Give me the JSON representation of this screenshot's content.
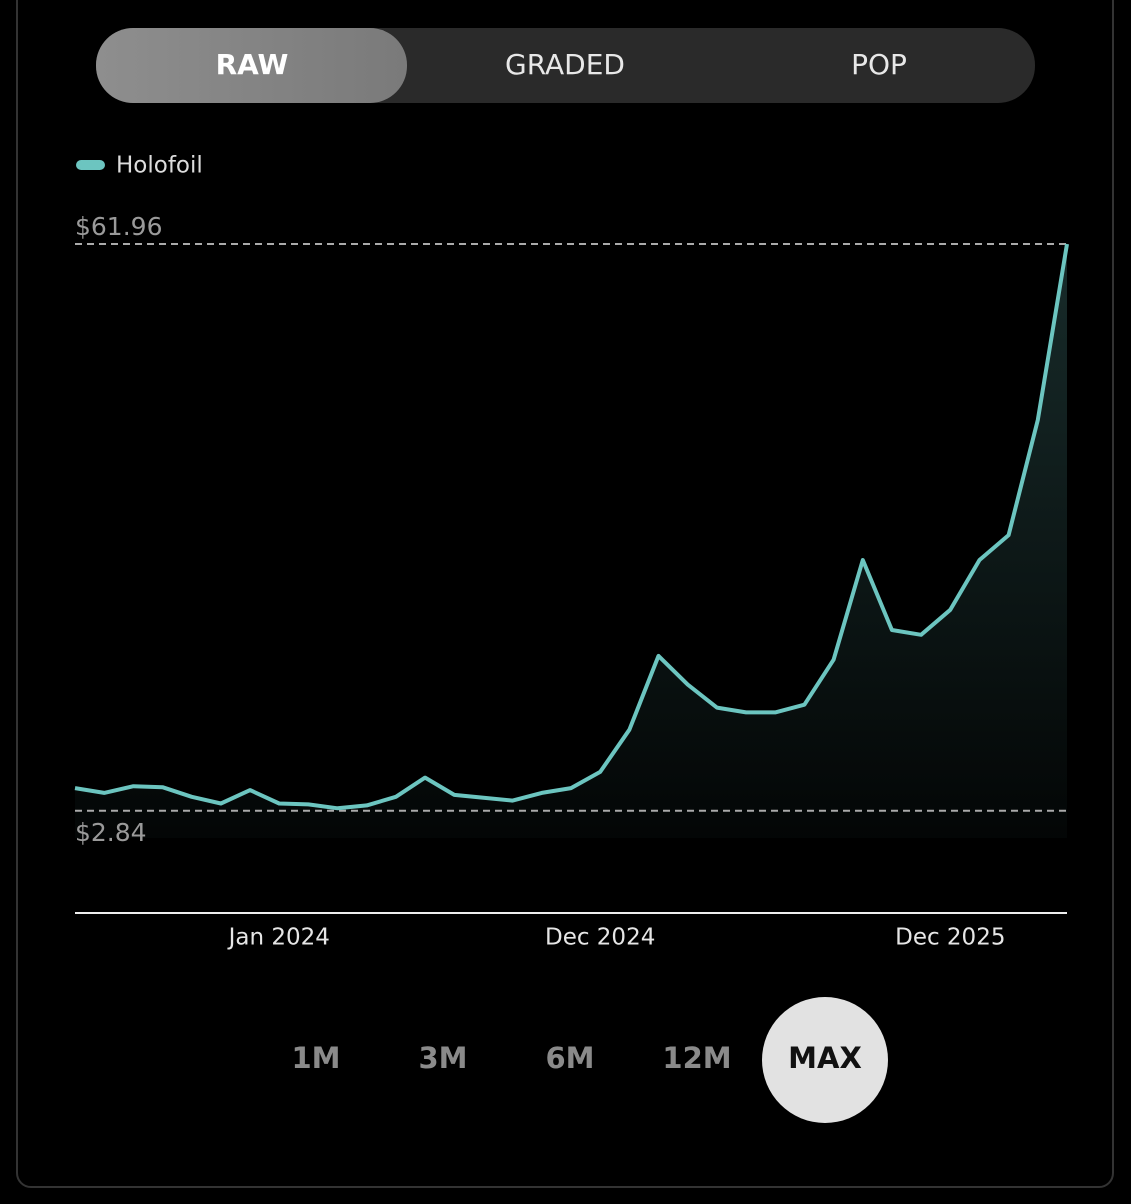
{
  "tabs": [
    "RAW",
    "GRADED",
    "POP"
  ],
  "ranges": [
    "1M",
    "3M",
    "6M",
    "12M",
    "MAX"
  ],
  "chart_data": {
    "type": "line",
    "x": [
      "2023-06",
      "2023-07",
      "2023-08",
      "2023-09",
      "2023-10",
      "2023-11",
      "2023-12",
      "2024-01",
      "2024-02",
      "2024-03",
      "2024-04",
      "2024-05",
      "2024-06",
      "2024-07",
      "2024-08",
      "2024-09",
      "2024-10",
      "2024-11",
      "2024-12",
      "2025-01",
      "2025-02",
      "2025-03",
      "2025-04",
      "2025-05",
      "2025-06",
      "2025-07",
      "2025-08",
      "2025-09",
      "2025-10",
      "2025-11",
      "2025-12",
      "2026-01",
      "2026-02",
      "2026-03",
      "2026-04"
    ],
    "series": [
      {
        "name": "Holofoil",
        "color": "#6cc5c0",
        "values": [
          5.2,
          4.7,
          5.4,
          5.3,
          4.3,
          3.6,
          5.0,
          3.6,
          3.5,
          3.1,
          3.4,
          4.3,
          6.3,
          4.5,
          4.2,
          3.9,
          4.7,
          5.2,
          6.9,
          11.3,
          19.0,
          16.0,
          13.6,
          13.1,
          13.1,
          13.9,
          18.6,
          29.0,
          21.7,
          21.2,
          23.8,
          29.0,
          31.6,
          43.6,
          61.96
        ]
      }
    ],
    "ylim": [
      0,
      61.96
    ],
    "yticks": [
      {
        "value": 61.96,
        "label": "$61.96"
      },
      {
        "value": 2.84,
        "label": "$2.84"
      }
    ],
    "xticks": [
      {
        "value": "2024-01",
        "label": "Jan 2024"
      },
      {
        "value": "2024-12",
        "label": "Dec 2024"
      },
      {
        "value": "2025-12",
        "label": "Dec 2025"
      }
    ]
  }
}
